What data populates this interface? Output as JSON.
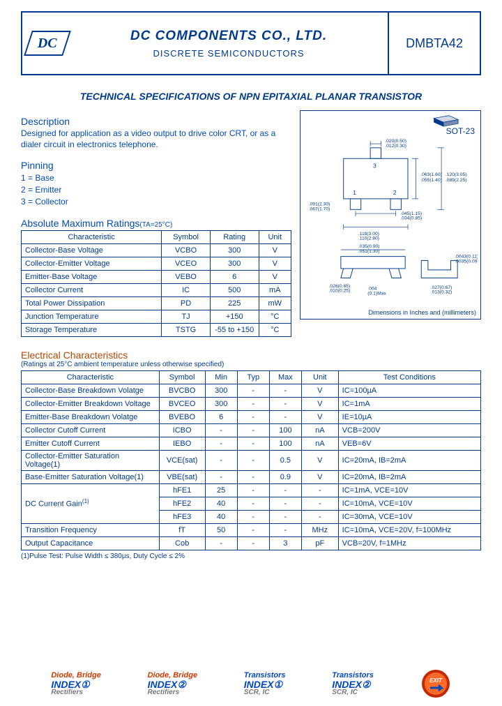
{
  "header": {
    "logo_text": "DC",
    "company": "DC COMPONENTS CO., LTD.",
    "subtitle": "DISCRETE SEMICONDUCTORS",
    "part_number": "DMBTA42"
  },
  "tech_title": "TECHNICAL SPECIFICATIONS OF NPN EPITAXIAL PLANAR TRANSISTOR",
  "description": {
    "heading": "Description",
    "text": "Designed for application as a video output to drive color CRT, or as a dialer circuit in electronics telephone."
  },
  "pinning": {
    "heading": "Pinning",
    "pins": [
      "1 = Base",
      "2 = Emitter",
      "3 = Collector"
    ]
  },
  "package": {
    "label": "SOT-23",
    "dim_note": "Dimensions in Inches and (millimeters)"
  },
  "abs_max": {
    "heading": "Absolute Maximum Ratings",
    "cond": "(TA=25°C)",
    "columns": [
      "Characteristic",
      "Symbol",
      "Rating",
      "Unit"
    ],
    "rows": [
      [
        "Collector-Base Voltage",
        "VCBO",
        "300",
        "V"
      ],
      [
        "Collector-Emitter Voltage",
        "VCEO",
        "300",
        "V"
      ],
      [
        "Emitter-Base Voltage",
        "VEBO",
        "6",
        "V"
      ],
      [
        "Collector Current",
        "IC",
        "500",
        "mA"
      ],
      [
        "Total Power Dissipation",
        "PD",
        "225",
        "mW"
      ],
      [
        "Junction Temperature",
        "TJ",
        "+150",
        "°C"
      ],
      [
        "Storage Temperature",
        "TSTG",
        "-55 to +150",
        "°C"
      ]
    ]
  },
  "elec": {
    "heading": "Electrical Characteristics",
    "sub": "(Ratings at 25°C ambient temperature unless otherwise specified)",
    "columns": [
      "Characteristic",
      "Symbol",
      "Min",
      "Typ",
      "Max",
      "Unit",
      "Test Conditions"
    ],
    "rows": [
      [
        "Collector-Base Breakdown Volatge",
        "BVCBO",
        "300",
        "-",
        "-",
        "V",
        "IC=100µA"
      ],
      [
        "Collector-Emitter Breakdown Voltage",
        "BVCEO",
        "300",
        "-",
        "-",
        "V",
        "IC=1mA"
      ],
      [
        "Emitter-Base Breakdown Volatge",
        "BVEBO",
        "6",
        "-",
        "-",
        "V",
        "IE=10µA"
      ],
      [
        "Collector Cutoff Current",
        "ICBO",
        "-",
        "-",
        "100",
        "nA",
        "VCB=200V"
      ],
      [
        "Emitter Cutoff Current",
        "IEBO",
        "-",
        "-",
        "100",
        "nA",
        "VEB=6V"
      ],
      [
        "Collector-Emitter Saturation Voltage(1)",
        "VCE(sat)",
        "-",
        "-",
        "0.5",
        "V",
        "IC=20mA, IB=2mA"
      ],
      [
        "Base-Emitter Saturation Voltage(1)",
        "VBE(sat)",
        "-",
        "-",
        "0.9",
        "V",
        "IC=20mA, IB=2mA"
      ],
      [
        "",
        "hFE1",
        "25",
        "-",
        "-",
        "-",
        "IC=1mA, VCE=10V"
      ],
      [
        "DC Current Gain(1)",
        "hFE2",
        "40",
        "-",
        "-",
        "-",
        "IC=10mA, VCE=10V"
      ],
      [
        "",
        "hFE3",
        "40",
        "-",
        "-",
        "-",
        "IC=30mA, VCE=10V"
      ],
      [
        "Transition Frequency",
        "fT",
        "50",
        "-",
        "-",
        "MHz",
        "IC=10mA, VCE=20V, f=100MHz"
      ],
      [
        "Output Capacitance",
        "Cob",
        "-",
        "-",
        "3",
        "pF",
        "VCB=20V, f=1MHz"
      ]
    ],
    "footnote": "(1)Pulse Test: Pulse Width ≤ 380µs, Duty Cycle ≤ 2%"
  },
  "footer": {
    "badge1_a": "Diode, Bridge",
    "badge1_b": "INDEX①",
    "badge1_c": "Rectifiers",
    "badge2_a": "Diode, Bridge",
    "badge2_b": "INDEX②",
    "badge2_c": "Rectifiers",
    "badge3_a": "Transistors",
    "badge3_b": "INDEX①",
    "badge3_c": "SCR, IC",
    "badge4_a": "Transistors",
    "badge4_b": "INDEX②",
    "badge4_c": "SCR, IC",
    "exit": "EXIT"
  },
  "colors": {
    "primary": "#003a8c",
    "accent": "#b54600",
    "link_blue": "#0046c4"
  }
}
